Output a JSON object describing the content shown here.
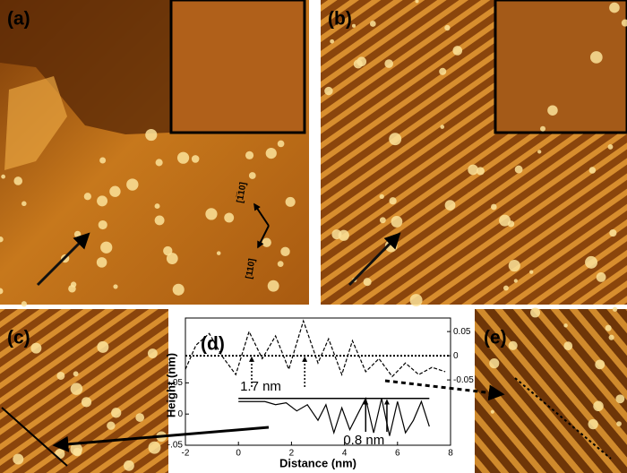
{
  "figure": {
    "panels": [
      "(a)",
      "(b)",
      "(c)",
      "(d)",
      "(e)"
    ],
    "directions": [
      "[1̅10]",
      "[110]"
    ]
  },
  "chart_data": {
    "type": "line",
    "xlabel": "Distance (nm)",
    "ylabel": "Height (nm)",
    "xlim": [
      -2,
      8
    ],
    "xticks": [
      -2,
      0,
      2,
      4,
      6,
      8
    ],
    "ylim": [
      -0.05,
      0.154
    ],
    "yticks": [
      {
        "value": -0.05,
        "label": "-.05"
      },
      0,
      {
        "value": 0.05,
        "label": ".05"
      }
    ],
    "y2lim": [
      -0.185,
      0.078
    ],
    "y2ticks": [
      -0.05,
      0,
      0.05
    ],
    "y2_reference": 0,
    "y_reference": 0.025,
    "series": [
      {
        "axis": "y2",
        "style": "dashed",
        "color": "#000",
        "x": [
          -2,
          -1.6,
          -1.1,
          -0.6,
          -0.1,
          0.4,
          0.9,
          1.4,
          1.9,
          2.45,
          3.0,
          3.4,
          3.9,
          4.3,
          4.8,
          5.3,
          5.8,
          6.3,
          6.8,
          7.3,
          7.8
        ],
        "values": [
          -0.028,
          0.022,
          0.046,
          -0.002,
          -0.039,
          0.05,
          -0.006,
          0.041,
          -0.028,
          0.072,
          -0.015,
          0.035,
          -0.039,
          0.031,
          -0.033,
          -0.006,
          -0.043,
          -0.015,
          -0.039,
          -0.024,
          -0.033
        ]
      },
      {
        "style": "solid",
        "color": "#000",
        "x": [
          0,
          0.5,
          1.0,
          1.4,
          1.8,
          2.2,
          2.6,
          3.0,
          3.3,
          3.6,
          3.9,
          4.2,
          4.5,
          4.8,
          5.1,
          5.4,
          5.7,
          6.0,
          6.3,
          6.6,
          6.9,
          7.2
        ],
        "values": [
          0.02,
          0.02,
          0.02,
          0.015,
          0.018,
          0.005,
          0.015,
          -0.01,
          0.015,
          -0.03,
          0.01,
          -0.025,
          0.0,
          0.025,
          -0.03,
          0.025,
          -0.035,
          0.02,
          -0.03,
          -0.01,
          0.02,
          -0.02
        ]
      }
    ],
    "annotations": [
      {
        "text": "1.7 nm",
        "x": 0.5,
        "x2": 2.5
      },
      {
        "text": "0.8 nm",
        "x": 4.8,
        "x2": 5.6
      }
    ]
  }
}
